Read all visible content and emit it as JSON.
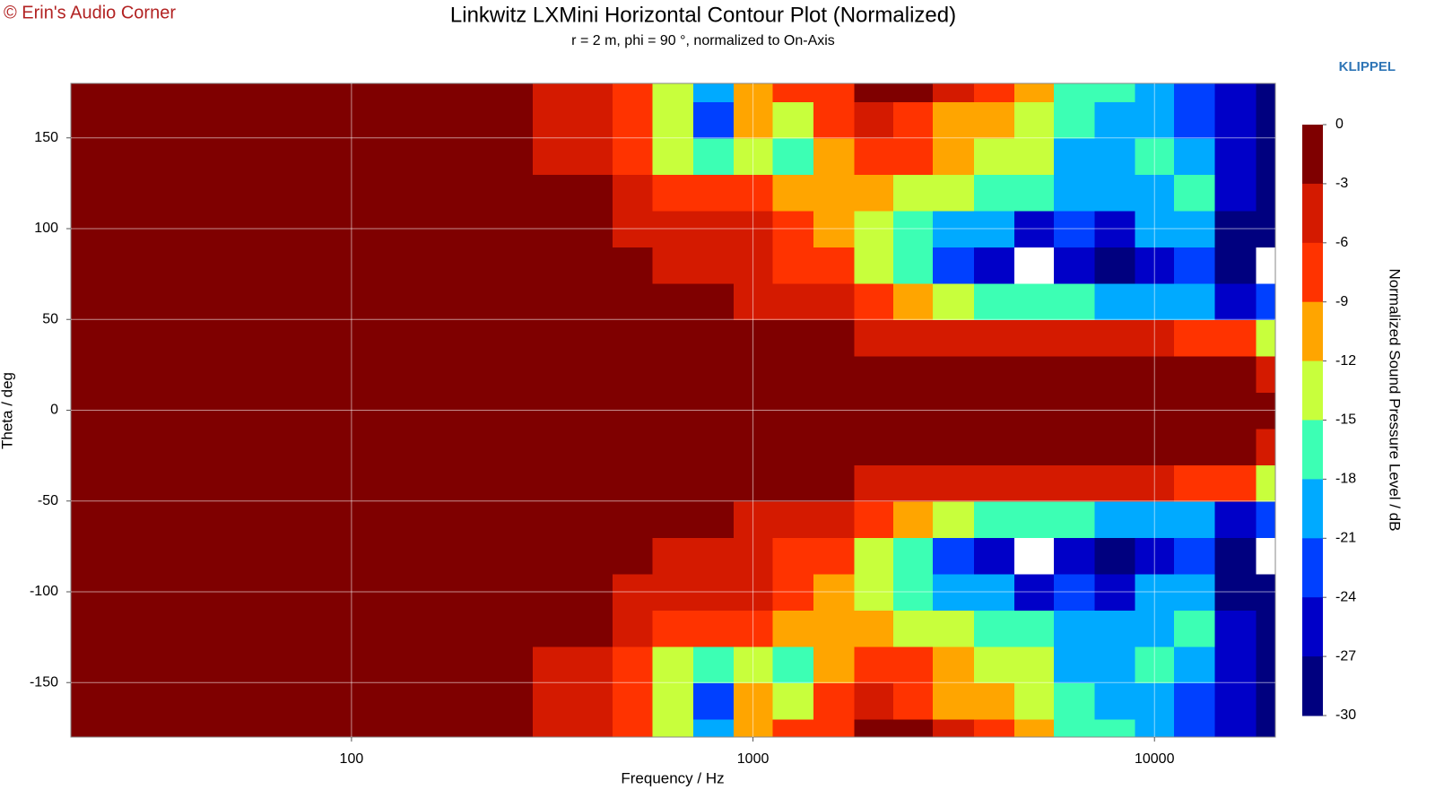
{
  "chart_data": {
    "type": "contour",
    "watermark": "© Erin's Audio Corner",
    "logo": "KLIPPEL",
    "title": "Linkwitz LXMini Horizontal Contour Plot (Normalized)",
    "subtitle": "r = 2 m, phi = 90 °, normalized to On-Axis",
    "xlabel": "Frequency / Hz",
    "ylabel": "Theta / deg",
    "colorbar_label": "Normalized Sound Pressure Level / dB",
    "xscale": "log",
    "xlim": [
      20,
      20000
    ],
    "xticks": [
      100,
      1000,
      10000
    ],
    "ylim": [
      -180,
      180
    ],
    "yticks": [
      -150,
      -100,
      -50,
      0,
      50,
      100,
      150
    ],
    "grid": true,
    "levels": [
      0,
      -3,
      -6,
      -9,
      -12,
      -15,
      -18,
      -21,
      -24,
      -27,
      -30
    ],
    "colors": [
      "#7f0000",
      "#d41a00",
      "#ff3300",
      "#ffa500",
      "#c8ff3c",
      "#3cffb4",
      "#00aaff",
      "#0040ff",
      "#0000c8",
      "#00007f"
    ],
    "below_color": "#ffffff",
    "x": [
      20,
      50,
      100,
      200,
      400,
      500,
      630,
      800,
      1000,
      1250,
      1600,
      2000,
      2500,
      3150,
      4000,
      5000,
      6300,
      8000,
      10000,
      12500,
      16000,
      20000
    ],
    "y": [
      -180,
      -160,
      -140,
      -120,
      -100,
      -80,
      -60,
      -40,
      -20,
      0,
      20,
      40,
      60,
      80,
      100,
      120,
      140,
      160,
      180
    ],
    "z": [
      [
        0,
        0,
        0,
        0,
        -3,
        -7,
        -12,
        -20,
        -9,
        -8,
        -6,
        -2,
        -2,
        -5,
        -8,
        -10,
        -15,
        -17,
        -20,
        -22,
        -26,
        -28
      ],
      [
        0,
        0,
        0,
        0,
        -3,
        -7,
        -13,
        -22,
        -11,
        -12,
        -8,
        -4,
        -6,
        -9,
        -11,
        -13,
        -17,
        -19,
        -18,
        -21,
        -25,
        -28
      ],
      [
        0,
        0,
        0,
        0,
        -3,
        -6,
        -12,
        -16,
        -12,
        -17,
        -9,
        -7,
        -8,
        -11,
        -13,
        -14,
        -18,
        -20,
        -17,
        -18,
        -24,
        -27
      ],
      [
        0,
        0,
        0,
        0,
        -2,
        -4,
        -8,
        -7,
        -8,
        -10,
        -9,
        -11,
        -13,
        -14,
        -16,
        -17,
        -20,
        -19,
        -18,
        -17,
        -25,
        -30
      ],
      [
        0,
        0,
        0,
        0,
        -1,
        -3,
        -5,
        -4,
        -5,
        -7,
        -9,
        -13,
        -15,
        -18,
        -20,
        -24,
        -22,
        -26,
        -20,
        -19,
        -27,
        -29
      ],
      [
        0,
        0,
        0,
        0,
        -1,
        -2,
        -3,
        -4,
        -4,
        -6,
        -8,
        -12,
        -16,
        -22,
        -26,
        -31,
        -25,
        -27,
        -24,
        -22,
        -28,
        -31
      ],
      [
        0,
        0,
        0,
        0,
        0,
        -1,
        -2,
        -2,
        -3,
        -4,
        -5,
        -7,
        -10,
        -13,
        -15,
        -16,
        -17,
        -18,
        -19,
        -20,
        -24,
        -22
      ],
      [
        0,
        0,
        0,
        0,
        0,
        0,
        0,
        0,
        -1,
        -1,
        -2,
        -3,
        -3,
        -4,
        -4,
        -4,
        -5,
        -5,
        -5,
        -6,
        -7,
        -12
      ],
      [
        0,
        0,
        0,
        0,
        0,
        0,
        0,
        0,
        0,
        0,
        0,
        0,
        -1,
        -1,
        -1,
        -1,
        -1,
        -1,
        -2,
        -2,
        -2,
        -3
      ],
      [
        0,
        0,
        0,
        0,
        0,
        0,
        0,
        0,
        0,
        0,
        0,
        0,
        0,
        0,
        0,
        0,
        0,
        0,
        0,
        0,
        0,
        0
      ],
      [
        0,
        0,
        0,
        0,
        0,
        0,
        0,
        0,
        0,
        0,
        0,
        0,
        -1,
        -1,
        -1,
        -1,
        -1,
        -1,
        -2,
        -2,
        -2,
        -3
      ],
      [
        0,
        0,
        0,
        0,
        0,
        0,
        0,
        0,
        -1,
        -1,
        -2,
        -3,
        -3,
        -4,
        -4,
        -4,
        -5,
        -5,
        -5,
        -6,
        -7,
        -12
      ],
      [
        0,
        0,
        0,
        0,
        0,
        -1,
        -2,
        -2,
        -3,
        -4,
        -5,
        -7,
        -10,
        -13,
        -15,
        -16,
        -17,
        -18,
        -19,
        -20,
        -24,
        -22
      ],
      [
        0,
        0,
        0,
        0,
        -1,
        -2,
        -3,
        -4,
        -4,
        -6,
        -8,
        -12,
        -16,
        -22,
        -26,
        -31,
        -25,
        -27,
        -24,
        -22,
        -28,
        -31
      ],
      [
        0,
        0,
        0,
        0,
        -1,
        -3,
        -5,
        -4,
        -5,
        -7,
        -9,
        -13,
        -15,
        -18,
        -20,
        -24,
        -22,
        -26,
        -20,
        -19,
        -27,
        -29
      ],
      [
        0,
        0,
        0,
        0,
        -2,
        -4,
        -8,
        -7,
        -8,
        -10,
        -9,
        -11,
        -13,
        -14,
        -16,
        -17,
        -20,
        -19,
        -18,
        -17,
        -25,
        -30
      ],
      [
        0,
        0,
        0,
        0,
        -3,
        -6,
        -12,
        -16,
        -12,
        -17,
        -9,
        -7,
        -8,
        -11,
        -13,
        -14,
        -18,
        -20,
        -17,
        -18,
        -24,
        -27
      ],
      [
        0,
        0,
        0,
        0,
        -3,
        -7,
        -13,
        -22,
        -11,
        -12,
        -8,
        -4,
        -6,
        -9,
        -11,
        -13,
        -17,
        -19,
        -18,
        -21,
        -25,
        -28
      ],
      [
        0,
        0,
        0,
        0,
        -3,
        -7,
        -12,
        -20,
        -9,
        -8,
        -6,
        -2,
        -2,
        -5,
        -8,
        -10,
        -15,
        -17,
        -20,
        -22,
        -26,
        -28
      ]
    ]
  }
}
